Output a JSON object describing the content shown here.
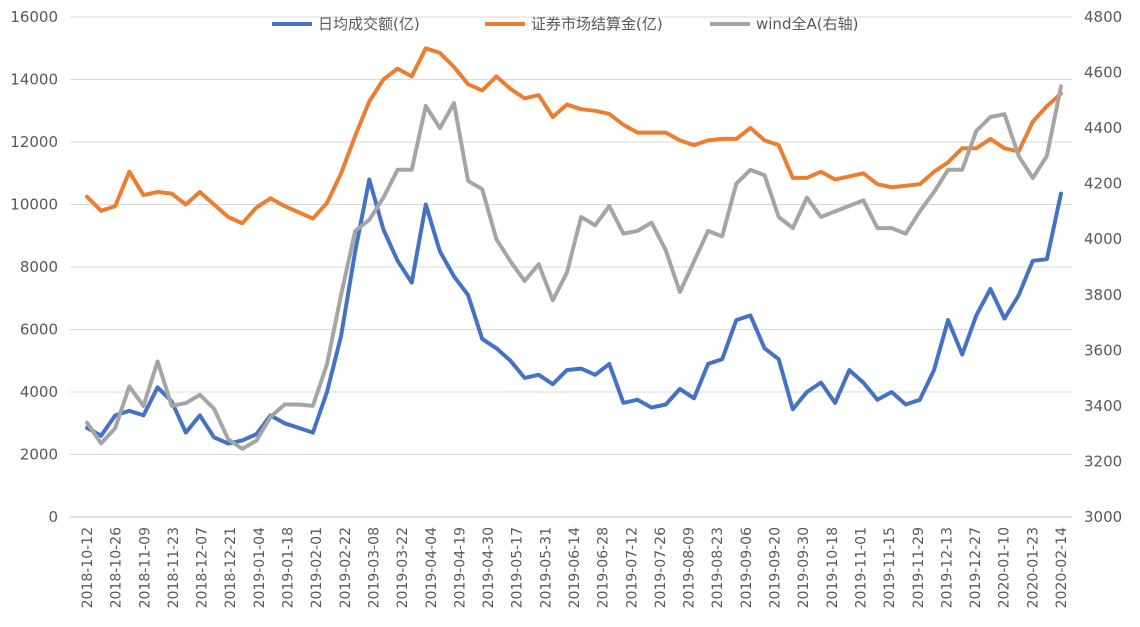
{
  "chart_data": {
    "type": "line",
    "title": "",
    "xlabel": "",
    "ylabel": "",
    "y_left": {
      "min": 0,
      "max": 16000,
      "ticks": [
        0,
        2000,
        4000,
        6000,
        8000,
        10000,
        12000,
        14000,
        16000
      ]
    },
    "y_right": {
      "min": 3000,
      "max": 4800,
      "ticks": [
        3000,
        3200,
        3400,
        3600,
        3800,
        4000,
        4200,
        4400,
        4600,
        4800
      ]
    },
    "grid": true,
    "legend": "top",
    "x_tick_labels": [
      "2018-10-12",
      "2018-10-26",
      "2018-11-09",
      "2018-11-23",
      "2018-12-07",
      "2018-12-21",
      "2019-01-04",
      "2019-01-18",
      "2019-02-01",
      "2019-02-22",
      "2019-03-08",
      "2019-03-22",
      "2019-04-04",
      "2019-04-19",
      "2019-04-30",
      "2019-05-17",
      "2019-05-31",
      "2019-06-14",
      "2019-06-28",
      "2019-07-12",
      "2019-07-26",
      "2019-08-09",
      "2019-08-23",
      "2019-09-06",
      "2019-09-20",
      "2019-09-30",
      "2019-10-18",
      "2019-11-01",
      "2019-11-15",
      "2019-11-29",
      "2019-12-13",
      "2019-12-27",
      "2020-01-10",
      "2020-01-23",
      "2020-02-14"
    ],
    "series": [
      {
        "name": "日均成交额(亿)",
        "axis": "left",
        "color": "#4472C4",
        "values": [
          2850,
          2600,
          3250,
          3400,
          3250,
          4150,
          3700,
          2700,
          3250,
          2550,
          2350,
          2450,
          2650,
          3250,
          3000,
          2850,
          2700,
          4000,
          5800,
          8500,
          10800,
          9200,
          8200,
          7500,
          10000,
          8500,
          7700,
          7100,
          5700,
          5400,
          5000,
          4450,
          4550,
          4250,
          4700,
          4750,
          4550,
          4900,
          3650,
          3750,
          3500,
          3600,
          4100,
          3800,
          4900,
          5050,
          6300,
          6450,
          5400,
          5050,
          3450,
          4000,
          4300,
          3650,
          4700,
          4300,
          3750,
          4000,
          3600,
          3750,
          4700,
          6300,
          5200,
          6450,
          7300,
          6350,
          7100,
          8200,
          8250,
          10350
        ]
      },
      {
        "name": "证券市场结算金(亿)",
        "axis": "left",
        "color": "#ED7D31",
        "values": [
          10250,
          9800,
          9950,
          11050,
          10300,
          10400,
          10350,
          10000,
          10400,
          10000,
          9600,
          9400,
          9900,
          10200,
          9950,
          9750,
          9550,
          10050,
          11000,
          12200,
          13300,
          14000,
          14350,
          14100,
          15000,
          14850,
          14400,
          13850,
          13650,
          14100,
          13700,
          13400,
          13500,
          12800,
          13200,
          13050,
          13000,
          12900,
          12550,
          12300,
          12300,
          12300,
          12050,
          11900,
          12050,
          12100,
          12100,
          12450,
          12050,
          11900,
          10850,
          10850,
          11050,
          10800,
          10900,
          11000,
          10650,
          10550,
          10600,
          10650,
          11050,
          11350,
          11800,
          11800,
          12100,
          11800,
          11700,
          12650,
          13150,
          13550
        ]
      },
      {
        "name": "wind全A(右轴)",
        "axis": "right",
        "color": "#A5A5A5",
        "values": [
          3340,
          3265,
          3320,
          3470,
          3400,
          3560,
          3400,
          3410,
          3440,
          3390,
          3280,
          3245,
          3275,
          3360,
          3405,
          3405,
          3400,
          3550,
          3800,
          4030,
          4070,
          4150,
          4250,
          4250,
          4480,
          4400,
          4490,
          4210,
          4180,
          4000,
          3920,
          3850,
          3910,
          3780,
          3880,
          4080,
          4050,
          4120,
          4020,
          4030,
          4060,
          3960,
          3810,
          3920,
          4030,
          4010,
          4200,
          4250,
          4230,
          4080,
          4040,
          4150,
          4080,
          4100,
          4120,
          4140,
          4040,
          4040,
          4020,
          4100,
          4170,
          4250,
          4250,
          4390,
          4440,
          4450,
          4300,
          4220,
          4300,
          4550
        ]
      }
    ]
  }
}
